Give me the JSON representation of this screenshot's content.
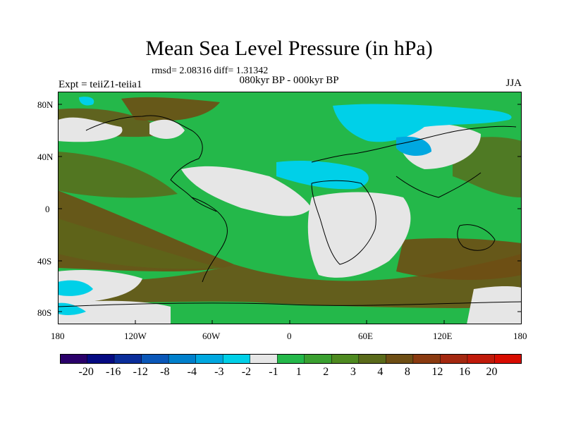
{
  "title": "Mean Sea Level Pressure (in hPa)",
  "stats": "rmsd= 2.08316 diff= 1.31342",
  "left_label": "Expt = teiiZ1-teiia1",
  "center_label": "080kyr BP - 000kyr BP",
  "right_label": "JJA",
  "y_ticks": [
    "80N",
    "40N",
    "0",
    "40S",
    "80S"
  ],
  "x_ticks": [
    "180",
    "120W",
    "60W",
    "0",
    "60E",
    "120E",
    "180"
  ],
  "colors": {
    "c1": "#2a006a",
    "c2": "#050a82",
    "c3": "#0a2d9a",
    "c4": "#0a57b8",
    "c5": "#0080cc",
    "c6": "#00a8e0",
    "c7": "#00d0e8",
    "c8": "#e6e6e6",
    "c9": "#24b84a",
    "c10": "#3aa030",
    "c11": "#4e8a20",
    "c12": "#5a6a1a",
    "c13": "#6e4e14",
    "c14": "#8a3a10",
    "c15": "#a42810",
    "c16": "#c01a0a",
    "c17": "#d80c00"
  },
  "colorbar_labels": [
    "-20",
    "-16",
    "-12",
    "-8",
    "-4",
    "-3",
    "-2",
    "-1",
    "1",
    "2",
    "3",
    "4",
    "8",
    "12",
    "16",
    "20"
  ]
}
